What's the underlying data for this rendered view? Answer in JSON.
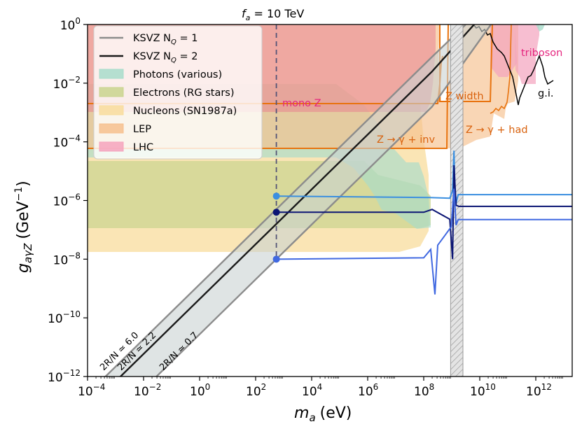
{
  "chart_data": {
    "type": "line",
    "xlabel_base": "m",
    "xlabel_sub": "a",
    "xlabel_unit": "(eV)",
    "ylabel_base": "g",
    "ylabel_sub": "aγZ",
    "ylabel_unit": "(GeV",
    "ylabel_unit_exp": "−1",
    "ylabel_unit_close": ")",
    "xlim_log10": [
      -4,
      13.3
    ],
    "ylim_log10": [
      -12,
      0
    ],
    "x_ticks": [
      {
        "base": "10",
        "exp": "−4",
        "log": -4
      },
      {
        "base": "10",
        "exp": "−2",
        "log": -2
      },
      {
        "base": "10",
        "exp": "0",
        "log": 0
      },
      {
        "base": "10",
        "exp": "2",
        "log": 2
      },
      {
        "base": "10",
        "exp": "4",
        "log": 4
      },
      {
        "base": "10",
        "exp": "6",
        "log": 6
      },
      {
        "base": "10",
        "exp": "8",
        "log": 8
      },
      {
        "base": "10",
        "exp": "10",
        "log": 10
      },
      {
        "base": "10",
        "exp": "12",
        "log": 12
      }
    ],
    "y_ticks": [
      {
        "base": "10",
        "exp": "0",
        "log": 0
      },
      {
        "base": "10",
        "exp": "−2",
        "log": -2
      },
      {
        "base": "10",
        "exp": "−4",
        "log": -4
      },
      {
        "base": "10",
        "exp": "−6",
        "log": -6
      },
      {
        "base": "10",
        "exp": "−8",
        "log": -8
      },
      {
        "base": "10",
        "exp": "−10",
        "log": -10
      },
      {
        "base": "10",
        "exp": "−12",
        "log": -12
      }
    ],
    "top_label_base": "f",
    "top_label_sub": "a",
    "top_label_rest": " = 10 TeV",
    "fa_line_log_x": 2.74,
    "legend": [
      {
        "key": "ksvz1",
        "label": "KSVZ N",
        "sub": "Q",
        "rest": " = 1",
        "kind": "line",
        "color": "#8c8c8c"
      },
      {
        "key": "ksvz2",
        "label": "KSVZ N",
        "sub": "Q",
        "rest": " = 2",
        "kind": "line",
        "color": "#1a1a1a"
      },
      {
        "key": "photons",
        "label": "Photons (various)",
        "kind": "patch",
        "color": "#a8dccb"
      },
      {
        "key": "electrons",
        "label": "Electrons (RG stars)",
        "kind": "patch",
        "color": "#c9d48e"
      },
      {
        "key": "nucleons",
        "label": "Nucleons (SN1987a)",
        "kind": "patch",
        "color": "#f8dc9c"
      },
      {
        "key": "lep",
        "label": "LEP",
        "kind": "patch",
        "color": "#f6c08e"
      },
      {
        "key": "lhc",
        "label": "LHC",
        "kind": "patch",
        "color": "#f4a3bd"
      }
    ],
    "annotations": [
      {
        "text": "mono Z",
        "color": "#e5257e"
      },
      {
        "text": "Z width",
        "color": "#d9620e"
      },
      {
        "text": "Z → γ + inv",
        "color": "#d9620e"
      },
      {
        "text": "Z → γ + had",
        "color": "#d9620e"
      },
      {
        "text": "triboson",
        "color": "#e5257e"
      },
      {
        "text": "g.i.",
        "color": "#000000"
      }
    ],
    "band_labels": [
      "2R/N ≃ 6.0",
      "2R/N ≃ 2.2",
      "2R/N ≃ 0.7"
    ],
    "ksvz_lines": [
      {
        "name": "KSVZ N_Q=2 central",
        "points_log": [
          [
            -4,
            -13.1
          ],
          [
            8.3,
            -1.6
          ],
          [
            9.8,
            0.0
          ]
        ]
      },
      {
        "name": "KSVZ N_Q=1 upper",
        "points_log": [
          [
            -4,
            -12.6
          ],
          [
            8.3,
            -1.1
          ],
          [
            9.5,
            0.0
          ]
        ]
      },
      {
        "name": "KSVZ N_Q=1 lower",
        "points_log": [
          [
            -4,
            -14.3
          ],
          [
            8.3,
            -2.8
          ],
          [
            10.4,
            0.0
          ]
        ]
      }
    ],
    "benchmark_points": [
      {
        "name": "upper",
        "log_m": 2.74,
        "log_g": -5.85,
        "color": "#3a8fe0",
        "after_log_g": -5.8
      },
      {
        "name": "middle",
        "log_m": 2.74,
        "log_g": -6.4,
        "color": "#0b1574",
        "after_log_g": -6.2
      },
      {
        "name": "lower",
        "log_m": 2.74,
        "log_g": -8.0,
        "color": "#4169e1",
        "after_log_g": -6.65
      }
    ],
    "z_mass_band_log": [
      8.96,
      9.4
    ]
  },
  "colors": {
    "photons": "#a8dccb",
    "electrons": "#c9d48e",
    "nucleons": "#f8dc9c",
    "lep": "#f6c08e",
    "lep_edge": "#e8730f",
    "lhc": "#f4a3bd",
    "lhc_fill": "#d98a94",
    "fa_line": "#555577",
    "band_fill": "#c9d2d2"
  }
}
